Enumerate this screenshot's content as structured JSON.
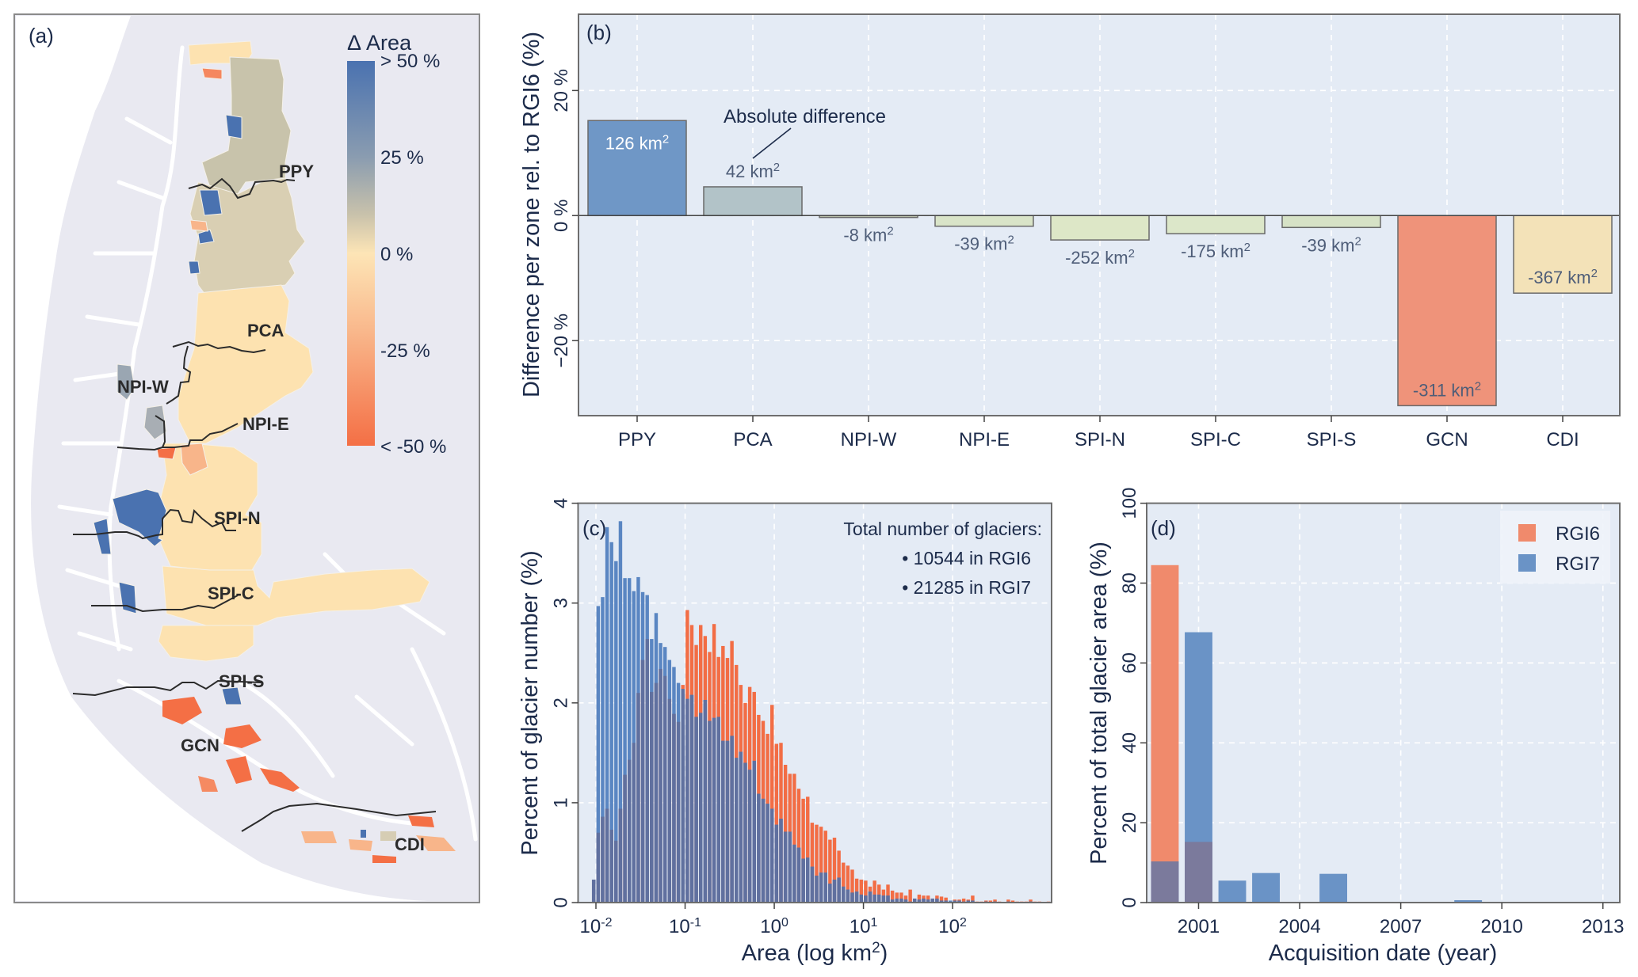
{
  "figure": {
    "panel_a": {
      "label": "(a)",
      "legend_title": "Δ Area",
      "legend_ticks": [
        "> 50 %",
        "25 %",
        "0 %",
        "-25 %",
        "< -50 %"
      ],
      "colorbar_colors": [
        "#4a72b0",
        "#8a9cb0",
        "#d6cdb4",
        "#fde5b6",
        "#f8a77a",
        "#f46f45"
      ],
      "zones": [
        {
          "name": "PPY",
          "color": "#c8c3ab"
        },
        {
          "name": "PCA",
          "color": "#e3d6b8"
        },
        {
          "name": "NPI-W",
          "color": "#9aa6b2"
        },
        {
          "name": "NPI-E",
          "color": "#fde2b0"
        },
        {
          "name": "SPI-N",
          "color": "#fde2b0"
        },
        {
          "name": "SPI-C",
          "color": "#fde2b0"
        },
        {
          "name": "SPI-S",
          "color": "#fde2b0"
        },
        {
          "name": "GCN",
          "color": "#f46f45"
        },
        {
          "name": "CDI",
          "color": "#f8b58a"
        }
      ],
      "colors": {
        "land": "#e7e7f0",
        "sea": "#ffffff",
        "increase": "#4a72b0",
        "decrease": "#f46f45",
        "neutral": "#fde2b0",
        "boundary": "#2b2b2b"
      }
    }
  },
  "chart_data": [
    {
      "id": "b",
      "type": "bar",
      "panel_label": "(b)",
      "title": "",
      "xlabel": "",
      "ylabel": "Difference per zone rel. to RGI6 (%)",
      "ylim": [
        -32,
        32.2
      ],
      "yticks": [
        -20,
        0,
        20
      ],
      "ytick_labels": [
        "−20 %",
        "0 %",
        "20 %"
      ],
      "grid": true,
      "categories": [
        "PPY",
        "PCA",
        "NPI-W",
        "NPI-E",
        "SPI-N",
        "SPI-C",
        "SPI-S",
        "GCN",
        "CDI"
      ],
      "values": [
        15.2,
        4.6,
        -0.3,
        -1.7,
        -3.9,
        -2.9,
        -1.9,
        -30.4,
        -12.4
      ],
      "bar_colors": [
        "#6f97c6",
        "#b2c3c8",
        "#c5ccb4",
        "#d9e4c8",
        "#dde7c7",
        "#dce7c9",
        "#d6e2c6",
        "#ef937a",
        "#f3e2b8"
      ],
      "data_labels_value": [
        "126",
        "42",
        "-8",
        "-39",
        "-252",
        "-175",
        "-39",
        "-311",
        "-367"
      ],
      "data_label_unit": "km",
      "data_label_sup": "2",
      "annotation": "Absolute difference"
    },
    {
      "id": "c",
      "type": "bar",
      "subtype": "histogram-overlay",
      "panel_label": "(c)",
      "xlabel": "Area (log km",
      "xlabel_sup": "2",
      "xlabel_end": ")",
      "ylabel": "Percent of glacier number (%)",
      "xscale": "log10",
      "xlim_log10": [
        -2.2,
        3.11
      ],
      "ylim": [
        0,
        4
      ],
      "yticks": [
        0,
        1,
        2,
        3,
        4
      ],
      "xticks_log10": [
        -2,
        -1,
        0,
        1,
        2
      ],
      "xtick_base": "10",
      "xtick_exps": [
        "-2",
        "-1",
        "0",
        "1",
        "2"
      ],
      "grid": true,
      "bin_width_log10": 0.05,
      "bin_start_log10": -2.05,
      "series": [
        {
          "name": "RGI6",
          "color": "#f26d45",
          "values": [
            0.23,
            0.7,
            0.86,
            0.94,
            0.73,
            0.62,
            0.94,
            1.28,
            1.43,
            1.6,
            2.1,
            2.43,
            2.64,
            2.11,
            2.2,
            2.34,
            2.27,
            2.04,
            1.89,
            1.81,
            2.18,
            2.93,
            2.78,
            2.58,
            2.78,
            2.67,
            2.51,
            2.79,
            2.46,
            2.57,
            2.45,
            2.62,
            2.38,
            2.18,
            2.0,
            2.16,
            2.11,
            1.88,
            1.82,
            1.69,
            1.98,
            1.59,
            1.6,
            1.38,
            1.29,
            1.29,
            1.14,
            1.04,
            1.06,
            0.8,
            0.78,
            0.76,
            0.72,
            0.63,
            0.65,
            0.52,
            0.4,
            0.37,
            0.33,
            0.24,
            0.23,
            0.22,
            0.16,
            0.22,
            0.18,
            0.13,
            0.18,
            0.12,
            0.1,
            0.1,
            0.07,
            0.13,
            0.04,
            0.08,
            0.07,
            0.07,
            0.04,
            0.07,
            0.06,
            0.05,
            0.01,
            0.03,
            0.03,
            0.04,
            0.03,
            0.07,
            0.01,
            0.01,
            0.02,
            0.02,
            0.03,
            0.01,
            0.0,
            0.03,
            0.02,
            0.01,
            0.01,
            0.01,
            0.03,
            0.01,
            0.01,
            0.0,
            0.01
          ]
        },
        {
          "name": "RGI7",
          "color": "#5a86c2",
          "values": [
            0.23,
            2.97,
            3.06,
            3.76,
            3.61,
            3.42,
            3.82,
            3.25,
            3.25,
            3.12,
            3.26,
            3.11,
            3.08,
            2.64,
            2.9,
            2.6,
            2.56,
            2.43,
            2.36,
            2.2,
            2.14,
            2.04,
            2.08,
            1.86,
            1.9,
            2.03,
            1.82,
            1.85,
            1.86,
            1.62,
            1.62,
            1.67,
            1.45,
            1.51,
            1.4,
            1.33,
            1.42,
            1.09,
            1.04,
            0.99,
            0.94,
            0.78,
            0.84,
            0.71,
            0.71,
            0.58,
            0.55,
            0.44,
            0.45,
            0.36,
            0.27,
            0.3,
            0.3,
            0.19,
            0.23,
            0.25,
            0.16,
            0.13,
            0.1,
            0.11,
            0.08,
            0.07,
            0.11,
            0.08,
            0.08,
            0.07,
            0.07,
            0.03,
            0.04,
            0.04,
            0.03,
            0.01,
            0.04,
            0.03,
            0.04,
            0.03,
            0.04,
            0.04,
            0.02,
            0.02,
            0.02,
            0.02,
            0.02,
            0.01,
            0.02,
            0.02,
            0.0,
            0.0,
            0.01,
            0.0,
            0.01,
            0.0,
            0.0,
            0.01,
            0.0,
            0.0,
            0.0,
            0.0,
            0.01,
            0.0,
            0.0,
            0.0,
            0.0
          ]
        }
      ],
      "overlap_color": "#60709f",
      "annotation": {
        "title": "Total number of glaciers:",
        "lines": [
          "• 10544 in RGI6",
          "• 21285 in RGI7"
        ]
      }
    },
    {
      "id": "d",
      "type": "bar",
      "subtype": "overlay",
      "panel_label": "(d)",
      "xlabel": "Acquisition date (year)",
      "ylabel": "Percent of total glacier area (%)",
      "xlim": [
        1999.46,
        2013.5
      ],
      "ylim": [
        0,
        100
      ],
      "yticks": [
        0,
        20,
        40,
        60,
        80,
        100
      ],
      "xticks": [
        2001,
        2004,
        2007,
        2010,
        2013
      ],
      "grid": true,
      "legend_position": "top-right",
      "x": [
        2000,
        2001,
        2002,
        2003,
        2005,
        2009
      ],
      "series": [
        {
          "name": "RGI6",
          "color": "#f08a6c",
          "values": [
            84.5,
            15.2,
            0,
            0,
            0,
            0
          ]
        },
        {
          "name": "RGI7",
          "color": "#6a93c6",
          "values": [
            10.3,
            67.7,
            5.5,
            7.4,
            7.2,
            0.6
          ]
        }
      ],
      "overlap_color": "#7b7a9c"
    }
  ]
}
